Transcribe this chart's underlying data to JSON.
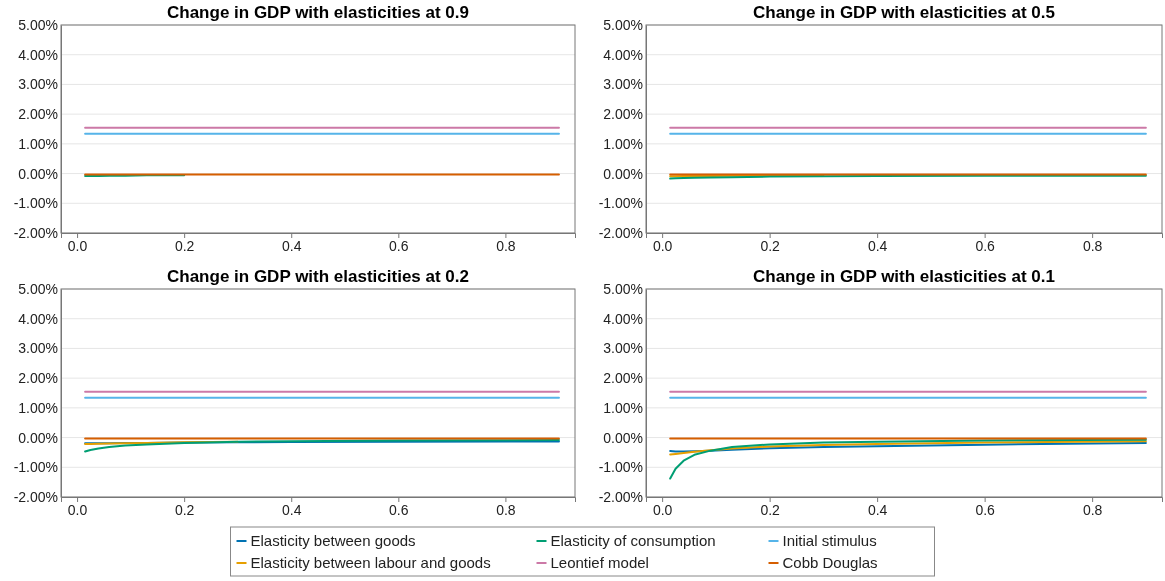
{
  "chart_data": [
    {
      "type": "line",
      "title": "Change in GDP with elasticities at 0.9",
      "x": [
        0.015,
        0.025,
        0.04,
        0.06,
        0.09,
        0.13,
        0.2,
        0.3,
        0.4,
        0.6,
        0.9
      ],
      "xlim": [
        -0.03,
        0.93
      ],
      "xticks": [
        {
          "value": 0,
          "label": "0.0"
        },
        {
          "value": 0.2,
          "label": "0.2"
        },
        {
          "value": 0.4,
          "label": "0.4"
        },
        {
          "value": 0.6,
          "label": "0.6"
        },
        {
          "value": 0.8,
          "label": "0.8"
        }
      ],
      "ylim": [
        -2,
        5
      ],
      "yticks": [
        {
          "value": -2,
          "label": "-2.00%"
        },
        {
          "value": -1,
          "label": "-1.00%"
        },
        {
          "value": 0,
          "label": "0.00%"
        },
        {
          "value": 1,
          "label": "1.00%"
        },
        {
          "value": 2,
          "label": "2.00%"
        },
        {
          "value": 3,
          "label": "3.00%"
        },
        {
          "value": 4,
          "label": "4.00%"
        },
        {
          "value": 5,
          "label": "5.00%"
        }
      ],
      "grid": "y",
      "series": [
        {
          "color": "#0072b2",
          "values": [
            null,
            null,
            null,
            null,
            null,
            null,
            null,
            null,
            null,
            null,
            null
          ]
        },
        {
          "color": "#e69f00",
          "values": [
            null,
            null,
            null,
            null,
            null,
            null,
            null,
            null,
            null,
            null,
            null
          ]
        },
        {
          "color": "#009e73",
          "values": [
            -0.08,
            -0.08,
            -0.08,
            -0.07,
            -0.07,
            -0.06,
            -0.06,
            null,
            null,
            null,
            null
          ]
        },
        {
          "color": "#cc79a7",
          "values": [
            1.54,
            1.54,
            1.54,
            1.54,
            1.54,
            1.54,
            1.54,
            1.54,
            1.54,
            1.54,
            1.54
          ]
        },
        {
          "color": "#56b4e9",
          "values": [
            1.34,
            1.34,
            1.34,
            1.34,
            1.34,
            1.34,
            1.34,
            1.34,
            1.34,
            1.34,
            1.34
          ]
        },
        {
          "color": "#d55e00",
          "values": [
            -0.03,
            -0.03,
            -0.03,
            -0.03,
            -0.03,
            -0.03,
            -0.03,
            -0.03,
            -0.03,
            -0.03,
            -0.03
          ]
        }
      ]
    },
    {
      "type": "line",
      "title": "Change in GDP with elasticities at 0.5",
      "x": [
        0.015,
        0.025,
        0.04,
        0.06,
        0.09,
        0.13,
        0.2,
        0.3,
        0.4,
        0.6,
        0.9
      ],
      "xlim": [
        -0.03,
        0.93
      ],
      "xticks": [
        {
          "value": 0,
          "label": "0.0"
        },
        {
          "value": 0.2,
          "label": "0.2"
        },
        {
          "value": 0.4,
          "label": "0.4"
        },
        {
          "value": 0.6,
          "label": "0.6"
        },
        {
          "value": 0.8,
          "label": "0.8"
        }
      ],
      "ylim": [
        -2,
        5
      ],
      "yticks": [
        {
          "value": -2,
          "label": "-2.00%"
        },
        {
          "value": -1,
          "label": "-1.00%"
        },
        {
          "value": 0,
          "label": "0.00%"
        },
        {
          "value": 1,
          "label": "1.00%"
        },
        {
          "value": 2,
          "label": "2.00%"
        },
        {
          "value": 3,
          "label": "3.00%"
        },
        {
          "value": 4,
          "label": "4.00%"
        },
        {
          "value": 5,
          "label": "5.00%"
        }
      ],
      "grid": "y",
      "series": [
        {
          "color": "#0072b2",
          "values": [
            null,
            null,
            null,
            null,
            null,
            null,
            null,
            null,
            null,
            null,
            null
          ]
        },
        {
          "color": "#e69f00",
          "values": [
            -0.09,
            -0.09,
            -0.08,
            -0.08,
            -0.08,
            -0.07,
            -0.07,
            -0.06,
            null,
            null,
            null
          ]
        },
        {
          "color": "#009e73",
          "values": [
            -0.17,
            -0.16,
            -0.15,
            -0.14,
            -0.13,
            -0.12,
            -0.1,
            -0.09,
            -0.08,
            -0.07,
            -0.07
          ]
        },
        {
          "color": "#cc79a7",
          "values": [
            1.54,
            1.54,
            1.54,
            1.54,
            1.54,
            1.54,
            1.54,
            1.54,
            1.54,
            1.54,
            1.54
          ]
        },
        {
          "color": "#56b4e9",
          "values": [
            1.34,
            1.34,
            1.34,
            1.34,
            1.34,
            1.34,
            1.34,
            1.34,
            1.34,
            1.34,
            1.34
          ]
        },
        {
          "color": "#d55e00",
          "values": [
            -0.03,
            -0.03,
            -0.03,
            -0.03,
            -0.03,
            -0.03,
            -0.03,
            -0.03,
            -0.03,
            -0.03,
            -0.03
          ]
        }
      ]
    },
    {
      "type": "line",
      "title": "Change in GDP with elasticities at 0.2",
      "x": [
        0.015,
        0.025,
        0.04,
        0.06,
        0.09,
        0.13,
        0.2,
        0.3,
        0.4,
        0.6,
        0.9
      ],
      "xlim": [
        -0.03,
        0.93
      ],
      "xticks": [
        {
          "value": 0,
          "label": "0.0"
        },
        {
          "value": 0.2,
          "label": "0.2"
        },
        {
          "value": 0.4,
          "label": "0.4"
        },
        {
          "value": 0.6,
          "label": "0.6"
        },
        {
          "value": 0.8,
          "label": "0.8"
        }
      ],
      "ylim": [
        -2,
        5
      ],
      "yticks": [
        {
          "value": -2,
          "label": "-2.00%"
        },
        {
          "value": -1,
          "label": "-1.00%"
        },
        {
          "value": 0,
          "label": "0.00%"
        },
        {
          "value": 1,
          "label": "1.00%"
        },
        {
          "value": 2,
          "label": "2.00%"
        },
        {
          "value": 3,
          "label": "3.00%"
        },
        {
          "value": 4,
          "label": "4.00%"
        },
        {
          "value": 5,
          "label": "5.00%"
        }
      ],
      "grid": "y",
      "series": [
        {
          "color": "#0072b2",
          "values": [
            -0.19,
            -0.19,
            -0.19,
            -0.19,
            -0.18,
            -0.18,
            -0.17,
            -0.16,
            -0.15,
            -0.14,
            -0.13
          ]
        },
        {
          "color": "#e69f00",
          "values": [
            -0.22,
            -0.22,
            -0.21,
            -0.2,
            -0.19,
            -0.18,
            -0.16,
            -0.14,
            null,
            null,
            null
          ]
        },
        {
          "color": "#009e73",
          "values": [
            -0.47,
            -0.42,
            -0.37,
            -0.32,
            -0.27,
            -0.23,
            -0.18,
            -0.14,
            -0.12,
            -0.1,
            -0.08
          ]
        },
        {
          "color": "#cc79a7",
          "values": [
            1.54,
            1.54,
            1.54,
            1.54,
            1.54,
            1.54,
            1.54,
            1.54,
            1.54,
            1.54,
            1.54
          ]
        },
        {
          "color": "#56b4e9",
          "values": [
            1.34,
            1.34,
            1.34,
            1.34,
            1.34,
            1.34,
            1.34,
            1.34,
            1.34,
            1.34,
            1.34
          ]
        },
        {
          "color": "#d55e00",
          "values": [
            -0.03,
            -0.03,
            -0.03,
            -0.03,
            -0.03,
            -0.03,
            -0.03,
            -0.03,
            -0.03,
            -0.03,
            -0.03
          ]
        }
      ]
    },
    {
      "type": "line",
      "title": "Change in GDP with elasticities at 0.1",
      "x": [
        0.015,
        0.025,
        0.04,
        0.06,
        0.09,
        0.13,
        0.2,
        0.3,
        0.4,
        0.6,
        0.9
      ],
      "xlim": [
        -0.03,
        0.93
      ],
      "xticks": [
        {
          "value": 0,
          "label": "0.0"
        },
        {
          "value": 0.2,
          "label": "0.2"
        },
        {
          "value": 0.4,
          "label": "0.4"
        },
        {
          "value": 0.6,
          "label": "0.6"
        },
        {
          "value": 0.8,
          "label": "0.8"
        }
      ],
      "ylim": [
        -2,
        5
      ],
      "yticks": [
        {
          "value": -2,
          "label": "-2.00%"
        },
        {
          "value": -1,
          "label": "-1.00%"
        },
        {
          "value": 0,
          "label": "0.00%"
        },
        {
          "value": 1,
          "label": "1.00%"
        },
        {
          "value": 2,
          "label": "2.00%"
        },
        {
          "value": 3,
          "label": "3.00%"
        },
        {
          "value": 4,
          "label": "4.00%"
        },
        {
          "value": 5,
          "label": "5.00%"
        }
      ],
      "grid": "y",
      "legend": "bottom",
      "series": [
        {
          "name": "Elasticity between goods",
          "color": "#0072b2",
          "values": [
            -0.45,
            -0.47,
            -0.47,
            -0.46,
            -0.44,
            -0.41,
            -0.36,
            -0.32,
            -0.29,
            -0.24,
            -0.18
          ]
        },
        {
          "name": "Elasticity between labour and goods",
          "color": "#e69f00",
          "values": [
            -0.57,
            -0.55,
            -0.52,
            -0.48,
            -0.43,
            -0.37,
            -0.3,
            -0.25,
            -0.22,
            -0.17,
            -0.12
          ]
        },
        {
          "name": "Elasticity of consumption",
          "color": "#009e73",
          "values": [
            -1.38,
            -1.05,
            -0.78,
            -0.58,
            -0.44,
            -0.32,
            -0.23,
            -0.17,
            -0.14,
            -0.1,
            -0.07
          ]
        },
        {
          "name": "Leontief model",
          "color": "#cc79a7",
          "values": [
            1.54,
            1.54,
            1.54,
            1.54,
            1.54,
            1.54,
            1.54,
            1.54,
            1.54,
            1.54,
            1.54
          ]
        },
        {
          "name": "Initial stimulus",
          "color": "#56b4e9",
          "values": [
            1.34,
            1.34,
            1.34,
            1.34,
            1.34,
            1.34,
            1.34,
            1.34,
            1.34,
            1.34,
            1.34
          ]
        },
        {
          "name": "Cobb Douglas",
          "color": "#d55e00",
          "values": [
            -0.03,
            -0.03,
            -0.03,
            -0.03,
            -0.03,
            -0.03,
            -0.03,
            -0.03,
            -0.03,
            -0.03,
            -0.03
          ]
        }
      ]
    }
  ]
}
